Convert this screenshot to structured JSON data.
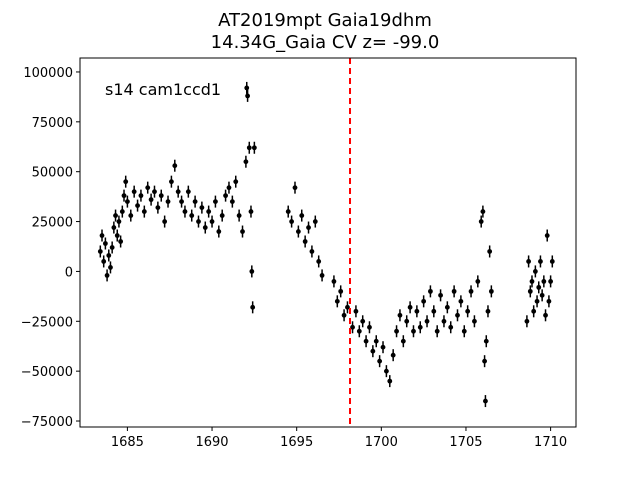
{
  "chart_data": {
    "type": "scatter",
    "title_line1": "AT2019mpt  Gaia19dhm",
    "title_line2": "14.34G_Gaia CV z= -99.0",
    "annotation": "s14 cam1ccd1",
    "xlabel": "",
    "ylabel": "",
    "xlim": [
      1682.2,
      1711.5
    ],
    "ylim": [
      -78000,
      107000
    ],
    "xticks": [
      1685,
      1690,
      1695,
      1700,
      1705,
      1710
    ],
    "yticks": [
      -75000,
      -50000,
      -25000,
      0,
      25000,
      50000,
      75000,
      100000
    ],
    "xtick_labels": [
      "1685",
      "1690",
      "1695",
      "1700",
      "1705",
      "1710"
    ],
    "ytick_labels": [
      "−75000",
      "−50000",
      "−25000",
      "0",
      "25000",
      "50000",
      "75000",
      "100000"
    ],
    "vline": {
      "x": 1698.15,
      "color": "#ff0000",
      "style": "dashed"
    },
    "marker_color": "#000000",
    "grid": false,
    "legend": "none",
    "points": [
      [
        1683.4,
        10000
      ],
      [
        1683.5,
        18000
      ],
      [
        1683.6,
        5000
      ],
      [
        1683.7,
        14000
      ],
      [
        1683.8,
        -2000
      ],
      [
        1683.9,
        8000
      ],
      [
        1684.0,
        2000
      ],
      [
        1684.1,
        12000
      ],
      [
        1684.2,
        22000
      ],
      [
        1684.3,
        28000
      ],
      [
        1684.4,
        18000
      ],
      [
        1684.5,
        25000
      ],
      [
        1684.6,
        15000
      ],
      [
        1684.7,
        30000
      ],
      [
        1684.8,
        38000
      ],
      [
        1684.9,
        45000
      ],
      [
        1685.0,
        35000
      ],
      [
        1685.2,
        28000
      ],
      [
        1685.4,
        40000
      ],
      [
        1685.6,
        33000
      ],
      [
        1685.8,
        38000
      ],
      [
        1686.0,
        30000
      ],
      [
        1686.2,
        42000
      ],
      [
        1686.4,
        36000
      ],
      [
        1686.6,
        40000
      ],
      [
        1686.8,
        32000
      ],
      [
        1687.0,
        38000
      ],
      [
        1687.2,
        25000
      ],
      [
        1687.4,
        35000
      ],
      [
        1687.6,
        45000
      ],
      [
        1687.8,
        53000
      ],
      [
        1688.0,
        40000
      ],
      [
        1688.2,
        35000
      ],
      [
        1688.4,
        30000
      ],
      [
        1688.6,
        40000
      ],
      [
        1688.8,
        28000
      ],
      [
        1689.0,
        35000
      ],
      [
        1689.2,
        25000
      ],
      [
        1689.4,
        32000
      ],
      [
        1689.6,
        22000
      ],
      [
        1689.8,
        30000
      ],
      [
        1690.0,
        25000
      ],
      [
        1690.2,
        35000
      ],
      [
        1690.4,
        20000
      ],
      [
        1690.6,
        28000
      ],
      [
        1690.8,
        38000
      ],
      [
        1691.0,
        42000
      ],
      [
        1691.2,
        35000
      ],
      [
        1691.4,
        45000
      ],
      [
        1691.6,
        28000
      ],
      [
        1691.8,
        20000
      ],
      [
        1692.0,
        55000
      ],
      [
        1692.05,
        92000
      ],
      [
        1692.1,
        88000
      ],
      [
        1692.2,
        62000
      ],
      [
        1692.3,
        30000
      ],
      [
        1692.35,
        0
      ],
      [
        1692.4,
        -18000
      ],
      [
        1692.5,
        62000
      ],
      [
        1694.5,
        30000
      ],
      [
        1694.7,
        25000
      ],
      [
        1694.9,
        42000
      ],
      [
        1695.1,
        20000
      ],
      [
        1695.3,
        28000
      ],
      [
        1695.5,
        15000
      ],
      [
        1695.7,
        22000
      ],
      [
        1695.9,
        10000
      ],
      [
        1696.1,
        25000
      ],
      [
        1696.3,
        5000
      ],
      [
        1696.5,
        -2000
      ],
      [
        1697.2,
        -5000
      ],
      [
        1697.4,
        -15000
      ],
      [
        1697.6,
        -10000
      ],
      [
        1697.8,
        -22000
      ],
      [
        1698.0,
        -18000
      ],
      [
        1698.3,
        -28000
      ],
      [
        1698.5,
        -20000
      ],
      [
        1698.7,
        -30000
      ],
      [
        1698.9,
        -25000
      ],
      [
        1699.1,
        -35000
      ],
      [
        1699.3,
        -28000
      ],
      [
        1699.5,
        -40000
      ],
      [
        1699.7,
        -35000
      ],
      [
        1699.9,
        -45000
      ],
      [
        1700.1,
        -38000
      ],
      [
        1700.3,
        -50000
      ],
      [
        1700.5,
        -55000
      ],
      [
        1700.7,
        -42000
      ],
      [
        1700.9,
        -30000
      ],
      [
        1701.1,
        -22000
      ],
      [
        1701.3,
        -35000
      ],
      [
        1701.5,
        -25000
      ],
      [
        1701.7,
        -18000
      ],
      [
        1701.9,
        -30000
      ],
      [
        1702.1,
        -20000
      ],
      [
        1702.3,
        -28000
      ],
      [
        1702.5,
        -15000
      ],
      [
        1702.7,
        -25000
      ],
      [
        1702.9,
        -10000
      ],
      [
        1703.1,
        -20000
      ],
      [
        1703.3,
        -30000
      ],
      [
        1703.5,
        -12000
      ],
      [
        1703.7,
        -25000
      ],
      [
        1703.9,
        -18000
      ],
      [
        1704.1,
        -28000
      ],
      [
        1704.3,
        -10000
      ],
      [
        1704.5,
        -22000
      ],
      [
        1704.7,
        -15000
      ],
      [
        1704.9,
        -30000
      ],
      [
        1705.1,
        -20000
      ],
      [
        1705.3,
        -10000
      ],
      [
        1705.5,
        -25000
      ],
      [
        1705.7,
        -5000
      ],
      [
        1705.9,
        25000
      ],
      [
        1706.0,
        30000
      ],
      [
        1706.1,
        -45000
      ],
      [
        1706.15,
        -65000
      ],
      [
        1706.2,
        -35000
      ],
      [
        1706.3,
        -20000
      ],
      [
        1706.4,
        10000
      ],
      [
        1706.5,
        -10000
      ],
      [
        1708.6,
        -25000
      ],
      [
        1708.7,
        5000
      ],
      [
        1708.8,
        -10000
      ],
      [
        1708.9,
        -5000
      ],
      [
        1709.0,
        -20000
      ],
      [
        1709.1,
        0
      ],
      [
        1709.2,
        -15000
      ],
      [
        1709.3,
        -8000
      ],
      [
        1709.4,
        5000
      ],
      [
        1709.5,
        -12000
      ],
      [
        1709.6,
        -5000
      ],
      [
        1709.7,
        -22000
      ],
      [
        1709.8,
        18000
      ],
      [
        1709.9,
        -15000
      ],
      [
        1710.0,
        -5000
      ],
      [
        1710.1,
        5000
      ]
    ]
  }
}
